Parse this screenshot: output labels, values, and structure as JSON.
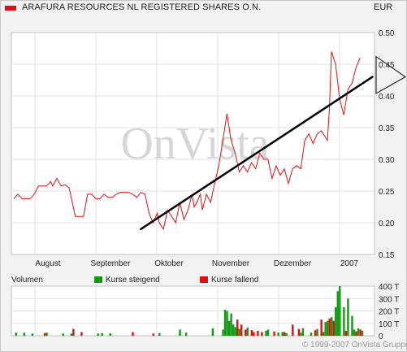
{
  "header": {
    "title": "ARAFURA RESOURCES NL REGISTERED SHARES O.N.",
    "currency": "EUR",
    "series_color": "#dd1111"
  },
  "watermark": "OnVista",
  "volume": {
    "label": "Volumen",
    "legend_up": "Kurse steigend",
    "legend_down": "Kurse fallend",
    "up_color": "#119911",
    "down_color": "#dd1111"
  },
  "copyright": "© 1999-2007 OnVista Gruppe",
  "chart_data": [
    {
      "type": "line",
      "title": "ARAFURA RESOURCES NL REGISTERED SHARES O.N.",
      "ylabel": "EUR",
      "ylim": [
        0.15,
        0.5
      ],
      "yticks": [
        "0.15",
        "0.20",
        "0.25",
        "0.30",
        "0.35",
        "0.40",
        "0.45",
        "0.50"
      ],
      "xticks": [
        "August",
        "September",
        "Oktober",
        "November",
        "Dezember",
        "2007"
      ],
      "grid": true,
      "series": [
        {
          "color": "#dd1111",
          "points": [
            [
              0,
              0.238
            ],
            [
              2,
              0.245
            ],
            [
              4,
              0.238
            ],
            [
              6,
              0.238
            ],
            [
              8,
              0.238
            ],
            [
              10,
              0.245
            ],
            [
              12,
              0.258
            ],
            [
              14,
              0.258
            ],
            [
              16,
              0.258
            ],
            [
              18,
              0.265
            ],
            [
              19,
              0.258
            ],
            [
              21,
              0.27
            ],
            [
              23,
              0.258
            ],
            [
              25,
              0.26
            ],
            [
              27,
              0.255
            ],
            [
              28,
              0.24
            ],
            [
              30,
              0.21
            ],
            [
              32,
              0.21
            ],
            [
              34,
              0.21
            ],
            [
              36,
              0.245
            ],
            [
              38,
              0.245
            ],
            [
              40,
              0.238
            ],
            [
              42,
              0.238
            ],
            [
              44,
              0.245
            ],
            [
              46,
              0.24
            ],
            [
              48,
              0.24
            ],
            [
              50,
              0.245
            ],
            [
              52,
              0.248
            ],
            [
              54,
              0.248
            ],
            [
              56,
              0.248
            ],
            [
              58,
              0.245
            ],
            [
              60,
              0.24
            ],
            [
              62,
              0.248
            ],
            [
              64,
              0.245
            ],
            [
              66,
              0.215
            ],
            [
              68,
              0.2
            ],
            [
              70,
              0.215
            ],
            [
              71,
              0.2
            ],
            [
              73,
              0.19
            ],
            [
              75,
              0.22
            ],
            [
              77,
              0.21
            ],
            [
              79,
              0.2
            ],
            [
              81,
              0.232
            ],
            [
              83,
              0.205
            ],
            [
              85,
              0.22
            ],
            [
              87,
              0.245
            ],
            [
              88,
              0.225
            ],
            [
              89,
              0.23
            ],
            [
              91,
              0.245
            ],
            [
              92,
              0.22
            ],
            [
              94,
              0.245
            ],
            [
              96,
              0.232
            ],
            [
              98,
              0.262
            ],
            [
              100,
              0.29
            ],
            [
              102,
              0.33
            ],
            [
              104,
              0.372
            ],
            [
              106,
              0.33
            ],
            [
              108,
              0.31
            ],
            [
              110,
              0.28
            ],
            [
              112,
              0.29
            ],
            [
              114,
              0.28
            ],
            [
              116,
              0.295
            ],
            [
              118,
              0.285
            ],
            [
              120,
              0.31
            ],
            [
              122,
              0.3
            ],
            [
              124,
              0.3
            ],
            [
              126,
              0.27
            ],
            [
              128,
              0.29
            ],
            [
              130,
              0.275
            ],
            [
              132,
              0.285
            ],
            [
              134,
              0.262
            ],
            [
              136,
              0.285
            ],
            [
              138,
              0.29
            ],
            [
              140,
              0.285
            ],
            [
              142,
              0.33
            ],
            [
              144,
              0.34
            ],
            [
              146,
              0.325
            ],
            [
              148,
              0.34
            ],
            [
              150,
              0.345
            ],
            [
              152,
              0.335
            ],
            [
              153,
              0.33
            ],
            [
              154,
              0.38
            ],
            [
              155,
              0.47
            ],
            [
              157,
              0.45
            ],
            [
              159,
              0.395
            ],
            [
              161,
              0.37
            ],
            [
              163,
              0.41
            ],
            [
              165,
              0.42
            ],
            [
              167,
              0.445
            ],
            [
              169,
              0.46
            ]
          ]
        },
        {
          "name": "",
          "color": "#000000",
          "points": [
            [
              62,
              0.19
            ],
            [
              175,
              0.43
            ]
          ]
        }
      ]
    },
    {
      "type": "bar",
      "title": "Volumen",
      "ylim": [
        0,
        400
      ],
      "yticks": [
        "0",
        "100 T",
        "200 T",
        "300 T",
        "400 T"
      ],
      "series": [
        {
          "name": "Kurse steigend",
          "color": "#119911",
          "values": [
            [
              1,
              25
            ],
            [
              5,
              25
            ],
            [
              9,
              18
            ],
            [
              16,
              25
            ],
            [
              24,
              18
            ],
            [
              28,
              18
            ],
            [
              41,
              18
            ],
            [
              43,
              20
            ],
            [
              47,
              20
            ],
            [
              71,
              22
            ],
            [
              81,
              50
            ],
            [
              84,
              25
            ],
            [
              97,
              60
            ],
            [
              102,
              50
            ],
            [
              103,
              210
            ],
            [
              104,
              200
            ],
            [
              105,
              120
            ],
            [
              106,
              180
            ],
            [
              107,
              90
            ],
            [
              108,
              70
            ],
            [
              110,
              55
            ],
            [
              114,
              65
            ],
            [
              123,
              40
            ],
            [
              124,
              50
            ],
            [
              129,
              25
            ],
            [
              131,
              30
            ],
            [
              133,
              20
            ],
            [
              140,
              25
            ],
            [
              141,
              60
            ],
            [
              145,
              25
            ],
            [
              148,
              55
            ],
            [
              151,
              30
            ],
            [
              152,
              110
            ],
            [
              153,
              120
            ],
            [
              155,
              150
            ],
            [
              157,
              230
            ],
            [
              158,
              360
            ],
            [
              159,
              400
            ],
            [
              161,
              230
            ],
            [
              163,
              300
            ],
            [
              165,
              160
            ],
            [
              166,
              50
            ],
            [
              168,
              60
            ],
            [
              170,
              40
            ]
          ]
        },
        {
          "name": "Kurse fallend",
          "color": "#dd1111",
          "values": [
            [
              15,
              22
            ],
            [
              29,
              55
            ],
            [
              33,
              30
            ],
            [
              58,
              30
            ],
            [
              68,
              18
            ],
            [
              109,
              130
            ],
            [
              111,
              90
            ],
            [
              113,
              50
            ],
            [
              116,
              45
            ],
            [
              117,
              30
            ],
            [
              119,
              40
            ],
            [
              121,
              30
            ],
            [
              127,
              35
            ],
            [
              132,
              30
            ],
            [
              136,
              90
            ],
            [
              139,
              55
            ],
            [
              147,
              45
            ],
            [
              150,
              130
            ],
            [
              154,
              140
            ],
            [
              156,
              120
            ],
            [
              162,
              40
            ],
            [
              167,
              35
            ],
            [
              169,
              50
            ]
          ]
        }
      ]
    }
  ]
}
